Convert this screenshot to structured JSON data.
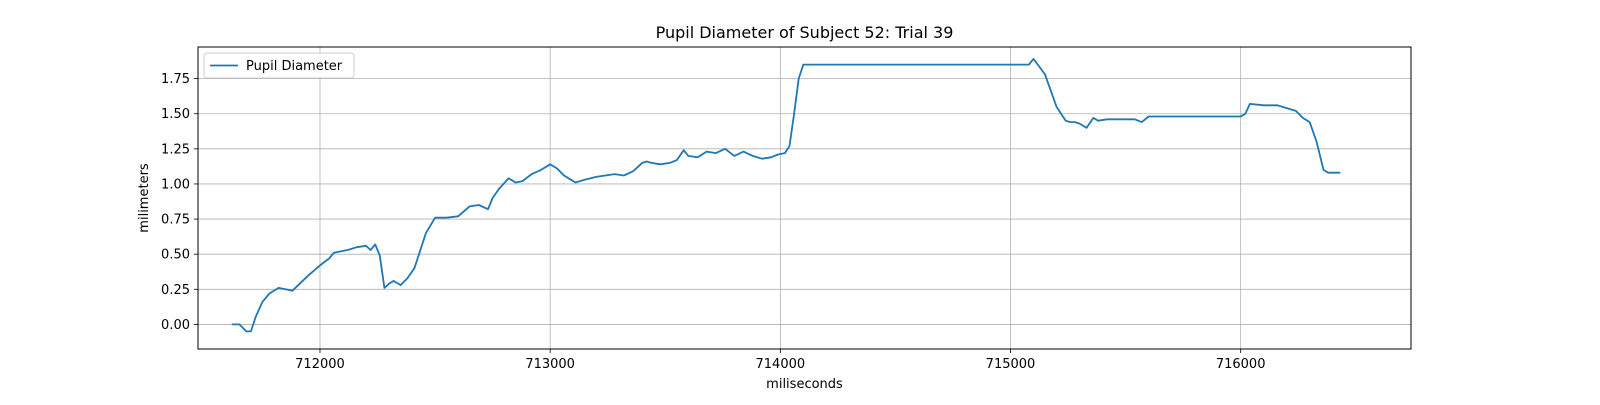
{
  "chart_data": {
    "type": "line",
    "title": "Pupil Diameter of Subject 52: Trial 39",
    "xlabel": "miliseconds",
    "ylabel": "milimeters",
    "xlim": [
      711470,
      716740
    ],
    "ylim": [
      -0.175,
      1.975
    ],
    "xticks": [
      712000,
      713000,
      714000,
      715000,
      716000
    ],
    "xtick_labels": [
      "712000",
      "713000",
      "714000",
      "715000",
      "716000"
    ],
    "yticks": [
      0.0,
      0.25,
      0.5,
      0.75,
      1.0,
      1.25,
      1.5,
      1.75
    ],
    "ytick_labels": [
      "0.00",
      "0.25",
      "0.50",
      "0.75",
      "1.00",
      "1.25",
      "1.50",
      "1.75"
    ],
    "grid": true,
    "legend_position": "upper-left",
    "colors": {
      "series": "#1f77b4",
      "grid": "#b0b0b0",
      "axes": "#000000"
    },
    "series": [
      {
        "name": "Pupil Diameter",
        "x": [
          711620,
          711650,
          711680,
          711700,
          711720,
          711750,
          711780,
          711820,
          711850,
          711880,
          711950,
          712000,
          712040,
          712060,
          712120,
          712160,
          712200,
          712220,
          712240,
          712260,
          712280,
          712300,
          712320,
          712350,
          712380,
          712410,
          712430,
          712460,
          712500,
          712550,
          712600,
          712650,
          712690,
          712730,
          712750,
          712780,
          712820,
          712850,
          712880,
          712920,
          712960,
          713000,
          713030,
          713060,
          713080,
          713110,
          713150,
          713200,
          713240,
          713280,
          713320,
          713360,
          713400,
          713420,
          713440,
          713480,
          713520,
          713550,
          713580,
          713600,
          713640,
          713680,
          713720,
          713760,
          713800,
          713840,
          713880,
          713920,
          713960,
          713990,
          714020,
          714040,
          714060,
          714080,
          714100,
          714150,
          714300,
          714500,
          714800,
          715000,
          715080,
          715100,
          715150,
          715200,
          715240,
          715260,
          715280,
          715300,
          715330,
          715360,
          715380,
          715420,
          715480,
          715540,
          715570,
          715600,
          715700,
          715900,
          716000,
          716020,
          716040,
          716100,
          716160,
          716200,
          716240,
          716270,
          716300,
          716330,
          716360,
          716380,
          716400,
          716430
        ],
        "values": [
          0.0,
          0.0,
          -0.05,
          -0.05,
          0.05,
          0.16,
          0.22,
          0.26,
          0.25,
          0.24,
          0.35,
          0.42,
          0.47,
          0.51,
          0.53,
          0.55,
          0.56,
          0.53,
          0.57,
          0.49,
          0.26,
          0.29,
          0.31,
          0.28,
          0.33,
          0.4,
          0.5,
          0.65,
          0.76,
          0.76,
          0.77,
          0.84,
          0.85,
          0.82,
          0.9,
          0.97,
          1.04,
          1.01,
          1.02,
          1.07,
          1.1,
          1.14,
          1.11,
          1.06,
          1.04,
          1.01,
          1.03,
          1.05,
          1.06,
          1.07,
          1.06,
          1.09,
          1.15,
          1.16,
          1.15,
          1.14,
          1.15,
          1.17,
          1.24,
          1.2,
          1.19,
          1.23,
          1.22,
          1.25,
          1.2,
          1.23,
          1.2,
          1.18,
          1.19,
          1.21,
          1.22,
          1.27,
          1.5,
          1.75,
          1.85,
          1.85,
          1.85,
          1.85,
          1.85,
          1.85,
          1.85,
          1.89,
          1.78,
          1.55,
          1.45,
          1.44,
          1.44,
          1.43,
          1.4,
          1.47,
          1.45,
          1.46,
          1.46,
          1.46,
          1.44,
          1.48,
          1.48,
          1.48,
          1.48,
          1.5,
          1.57,
          1.56,
          1.56,
          1.54,
          1.52,
          1.47,
          1.44,
          1.3,
          1.1,
          1.08,
          1.08,
          1.08
        ]
      }
    ]
  }
}
